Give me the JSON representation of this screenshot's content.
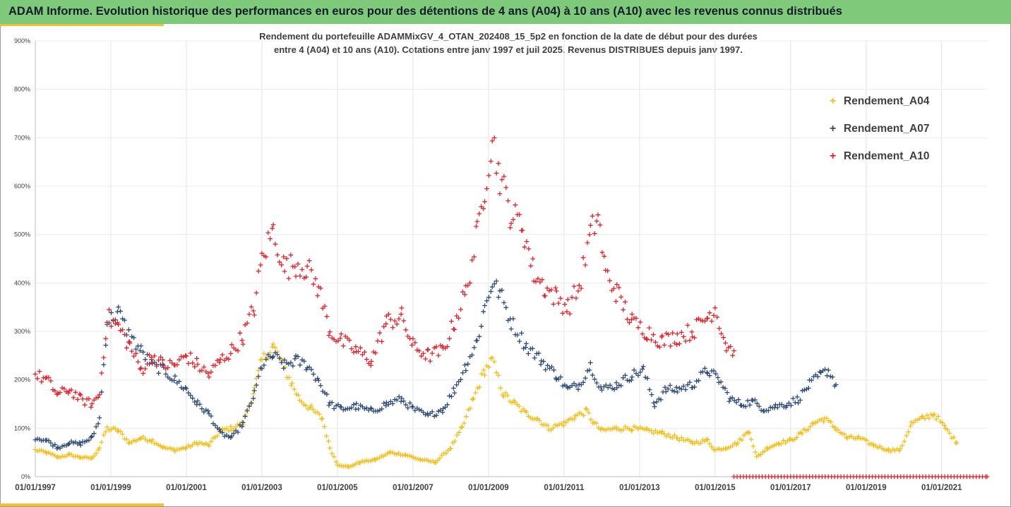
{
  "header": {
    "title": "ADAM Informe. Evolution historique des performances en euros pour des détentions de 4 ans (A04) à 10 ans (A10) avec les revenus connus distribués"
  },
  "chart_data": {
    "type": "scatter",
    "title_line1": "Rendement du portefeuille ADAMMixGV_4_OTAN_202408_15_5p2  en fonction de la date de début pour des durées",
    "title_line2": "entre 4 (A04) et 10 ans (A10). Cotations  entre janv 1997 et juil 2025. Revenus DISTRIBUES depuis janv 1997.",
    "ylim": [
      0,
      900
    ],
    "y_ticks": [
      "0%",
      "100%",
      "200%",
      "300%",
      "400%",
      "500%",
      "600%",
      "700%",
      "800%",
      "900%"
    ],
    "x_range": [
      1997.0,
      2022.2
    ],
    "x_ticks": [
      "01/01/1997",
      "01/01/1999",
      "01/01/2001",
      "01/01/2003",
      "01/01/2005",
      "01/01/2007",
      "01/01/2009",
      "01/01/2011",
      "01/01/2013",
      "01/01/2015",
      "01/01/2017",
      "01/01/2019",
      "01/01/2021"
    ],
    "legend_position": "top-right",
    "grid": "vertical",
    "series": [
      {
        "name": "Rendement_A04",
        "color": "#f5be1a",
        "points": [
          [
            1997.0,
            55
          ],
          [
            1997.3,
            50
          ],
          [
            1997.6,
            40
          ],
          [
            1997.9,
            45
          ],
          [
            1998.2,
            40
          ],
          [
            1998.5,
            38
          ],
          [
            1998.7,
            60
          ],
          [
            1998.9,
            100
          ],
          [
            1999.2,
            95
          ],
          [
            1999.5,
            70
          ],
          [
            1999.8,
            80
          ],
          [
            2000.1,
            75
          ],
          [
            2000.4,
            60
          ],
          [
            2000.7,
            55
          ],
          [
            2001.0,
            60
          ],
          [
            2001.3,
            70
          ],
          [
            2001.6,
            65
          ],
          [
            2001.9,
            95
          ],
          [
            2002.2,
            100
          ],
          [
            2002.5,
            110
          ],
          [
            2002.8,
            180
          ],
          [
            2003.0,
            240
          ],
          [
            2003.3,
            270
          ],
          [
            2003.5,
            240
          ],
          [
            2003.8,
            190
          ],
          [
            2004.0,
            160
          ],
          [
            2004.3,
            140
          ],
          [
            2004.6,
            120
          ],
          [
            2004.8,
            60
          ],
          [
            2005.0,
            25
          ],
          [
            2005.3,
            20
          ],
          [
            2005.6,
            30
          ],
          [
            2006.0,
            35
          ],
          [
            2006.4,
            50
          ],
          [
            2006.8,
            45
          ],
          [
            2007.2,
            35
          ],
          [
            2007.6,
            30
          ],
          [
            2008.0,
            60
          ],
          [
            2008.3,
            100
          ],
          [
            2008.6,
            160
          ],
          [
            2008.9,
            220
          ],
          [
            2009.1,
            240
          ],
          [
            2009.4,
            170
          ],
          [
            2009.7,
            150
          ],
          [
            2010.0,
            130
          ],
          [
            2010.3,
            120
          ],
          [
            2010.6,
            100
          ],
          [
            2011.0,
            110
          ],
          [
            2011.3,
            125
          ],
          [
            2011.6,
            135
          ],
          [
            2011.8,
            110
          ],
          [
            2012.0,
            95
          ],
          [
            2012.4,
            100
          ],
          [
            2012.8,
            100
          ],
          [
            2013.2,
            95
          ],
          [
            2013.6,
            90
          ],
          [
            2014.0,
            80
          ],
          [
            2014.4,
            70
          ],
          [
            2014.8,
            75
          ],
          [
            2015.0,
            55
          ],
          [
            2015.3,
            60
          ],
          [
            2015.6,
            70
          ],
          [
            2015.9,
            95
          ],
          [
            2016.1,
            40
          ],
          [
            2016.4,
            60
          ],
          [
            2016.7,
            70
          ],
          [
            2017.0,
            75
          ],
          [
            2017.3,
            90
          ],
          [
            2017.6,
            110
          ],
          [
            2017.9,
            120
          ],
          [
            2018.2,
            100
          ],
          [
            2018.5,
            80
          ],
          [
            2018.8,
            80
          ],
          [
            2019.2,
            65
          ],
          [
            2019.6,
            55
          ],
          [
            2019.9,
            55
          ],
          [
            2020.2,
            110
          ],
          [
            2020.5,
            120
          ],
          [
            2020.8,
            130
          ],
          [
            2021.1,
            100
          ],
          [
            2021.4,
            70
          ]
        ]
      },
      {
        "name": "Rendement_A07",
        "color": "#2c4a7a",
        "points": [
          [
            1997.0,
            80
          ],
          [
            1997.3,
            75
          ],
          [
            1997.6,
            60
          ],
          [
            1997.9,
            70
          ],
          [
            1998.2,
            68
          ],
          [
            1998.5,
            80
          ],
          [
            1998.7,
            120
          ],
          [
            1998.9,
            320
          ],
          [
            1999.2,
            340
          ],
          [
            1999.5,
            290
          ],
          [
            1999.8,
            260
          ],
          [
            2000.1,
            230
          ],
          [
            2000.4,
            220
          ],
          [
            2000.7,
            200
          ],
          [
            2001.0,
            180
          ],
          [
            2001.3,
            150
          ],
          [
            2001.6,
            130
          ],
          [
            2001.9,
            90
          ],
          [
            2002.2,
            80
          ],
          [
            2002.5,
            110
          ],
          [
            2002.8,
            170
          ],
          [
            2003.0,
            230
          ],
          [
            2003.3,
            250
          ],
          [
            2003.6,
            230
          ],
          [
            2003.9,
            240
          ],
          [
            2004.2,
            230
          ],
          [
            2004.5,
            200
          ],
          [
            2004.8,
            150
          ],
          [
            2005.1,
            140
          ],
          [
            2005.5,
            145
          ],
          [
            2005.9,
            135
          ],
          [
            2006.3,
            150
          ],
          [
            2006.7,
            160
          ],
          [
            2007.0,
            140
          ],
          [
            2007.4,
            125
          ],
          [
            2007.8,
            140
          ],
          [
            2008.1,
            180
          ],
          [
            2008.4,
            230
          ],
          [
            2008.7,
            280
          ],
          [
            2008.9,
            350
          ],
          [
            2009.1,
            400
          ],
          [
            2009.3,
            380
          ],
          [
            2009.6,
            320
          ],
          [
            2010.0,
            270
          ],
          [
            2010.4,
            240
          ],
          [
            2010.8,
            210
          ],
          [
            2011.1,
            180
          ],
          [
            2011.4,
            190
          ],
          [
            2011.7,
            230
          ],
          [
            2012.0,
            180
          ],
          [
            2012.4,
            190
          ],
          [
            2012.8,
            210
          ],
          [
            2013.1,
            220
          ],
          [
            2013.4,
            150
          ],
          [
            2013.7,
            180
          ],
          [
            2014.0,
            180
          ],
          [
            2014.4,
            190
          ],
          [
            2014.8,
            220
          ],
          [
            2015.1,
            200
          ],
          [
            2015.4,
            160
          ],
          [
            2015.7,
            150
          ],
          [
            2016.0,
            155
          ],
          [
            2016.3,
            140
          ],
          [
            2016.6,
            145
          ],
          [
            2016.9,
            150
          ],
          [
            2017.2,
            160
          ],
          [
            2017.5,
            190
          ],
          [
            2017.8,
            210
          ],
          [
            2018.0,
            220
          ],
          [
            2018.2,
            190
          ]
        ]
      },
      {
        "name": "Rendement_A10",
        "color": "#e3232b",
        "points": [
          [
            1997.0,
            210
          ],
          [
            1997.3,
            200
          ],
          [
            1997.6,
            170
          ],
          [
            1997.9,
            180
          ],
          [
            1998.2,
            160
          ],
          [
            1998.5,
            150
          ],
          [
            1998.7,
            170
          ],
          [
            1998.9,
            330
          ],
          [
            1999.2,
            310
          ],
          [
            1999.5,
            270
          ],
          [
            1999.8,
            220
          ],
          [
            2000.1,
            250
          ],
          [
            2000.4,
            230
          ],
          [
            2000.7,
            230
          ],
          [
            2001.0,
            250
          ],
          [
            2001.3,
            230
          ],
          [
            2001.6,
            210
          ],
          [
            2001.9,
            240
          ],
          [
            2002.2,
            260
          ],
          [
            2002.5,
            290
          ],
          [
            2002.8,
            350
          ],
          [
            2003.0,
            450
          ],
          [
            2003.3,
            510
          ],
          [
            2003.6,
            430
          ],
          [
            2003.9,
            440
          ],
          [
            2004.2,
            430
          ],
          [
            2004.5,
            390
          ],
          [
            2004.8,
            300
          ],
          [
            2005.1,
            280
          ],
          [
            2005.5,
            260
          ],
          [
            2005.9,
            240
          ],
          [
            2006.3,
            320
          ],
          [
            2006.7,
            330
          ],
          [
            2007.0,
            270
          ],
          [
            2007.4,
            250
          ],
          [
            2007.8,
            260
          ],
          [
            2008.1,
            320
          ],
          [
            2008.4,
            380
          ],
          [
            2008.7,
            500
          ],
          [
            2008.9,
            600
          ],
          [
            2009.1,
            700
          ],
          [
            2009.3,
            620
          ],
          [
            2009.6,
            540
          ],
          [
            2009.9,
            520
          ],
          [
            2010.2,
            420
          ],
          [
            2010.5,
            390
          ],
          [
            2010.8,
            370
          ],
          [
            2011.1,
            350
          ],
          [
            2011.4,
            390
          ],
          [
            2011.7,
            500
          ],
          [
            2011.9,
            540
          ],
          [
            2012.1,
            420
          ],
          [
            2012.4,
            380
          ],
          [
            2012.8,
            320
          ],
          [
            2013.2,
            300
          ],
          [
            2013.6,
            280
          ],
          [
            2014.0,
            290
          ],
          [
            2014.4,
            300
          ],
          [
            2014.8,
            330
          ],
          [
            2015.0,
            350
          ],
          [
            2015.3,
            270
          ],
          [
            2015.5,
            260
          ]
        ]
      },
      {
        "name": "",
        "color": "#e3232b",
        "points": [
          [
            2015.5,
            0
          ],
          [
            2022.2,
            0
          ]
        ]
      }
    ]
  }
}
